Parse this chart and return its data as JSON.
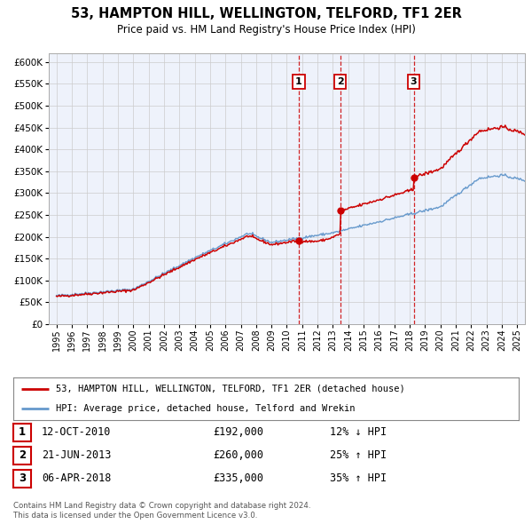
{
  "title": "53, HAMPTON HILL, WELLINGTON, TELFORD, TF1 2ER",
  "subtitle": "Price paid vs. HM Land Registry's House Price Index (HPI)",
  "legend_label_red": "53, HAMPTON HILL, WELLINGTON, TELFORD, TF1 2ER (detached house)",
  "legend_label_blue": "HPI: Average price, detached house, Telford and Wrekin",
  "footer_line1": "Contains HM Land Registry data © Crown copyright and database right 2024.",
  "footer_line2": "This data is licensed under the Open Government Licence v3.0.",
  "ylim": [
    0,
    620000
  ],
  "yticks": [
    0,
    50000,
    100000,
    150000,
    200000,
    250000,
    300000,
    350000,
    400000,
    450000,
    500000,
    550000,
    600000
  ],
  "ytick_labels": [
    "£0",
    "£50K",
    "£100K",
    "£150K",
    "£200K",
    "£250K",
    "£300K",
    "£350K",
    "£400K",
    "£450K",
    "£500K",
    "£550K",
    "£600K"
  ],
  "sale_markers": [
    {
      "num": 1,
      "date": "12-OCT-2010",
      "price": 192000,
      "pct": "12%",
      "dir": "↓",
      "x_year": 2010.78
    },
    {
      "num": 2,
      "date": "21-JUN-2013",
      "price": 260000,
      "pct": "25%",
      "dir": "↑",
      "x_year": 2013.47
    },
    {
      "num": 3,
      "date": "06-APR-2018",
      "price": 335000,
      "pct": "35%",
      "dir": "↑",
      "x_year": 2018.26
    }
  ],
  "red_color": "#cc0000",
  "blue_color": "#6699cc",
  "background_color": "#eef2fb",
  "grid_color": "#cccccc",
  "sale_vline_color": "#cc0000",
  "xlim_left": 1994.5,
  "xlim_right": 2025.5
}
